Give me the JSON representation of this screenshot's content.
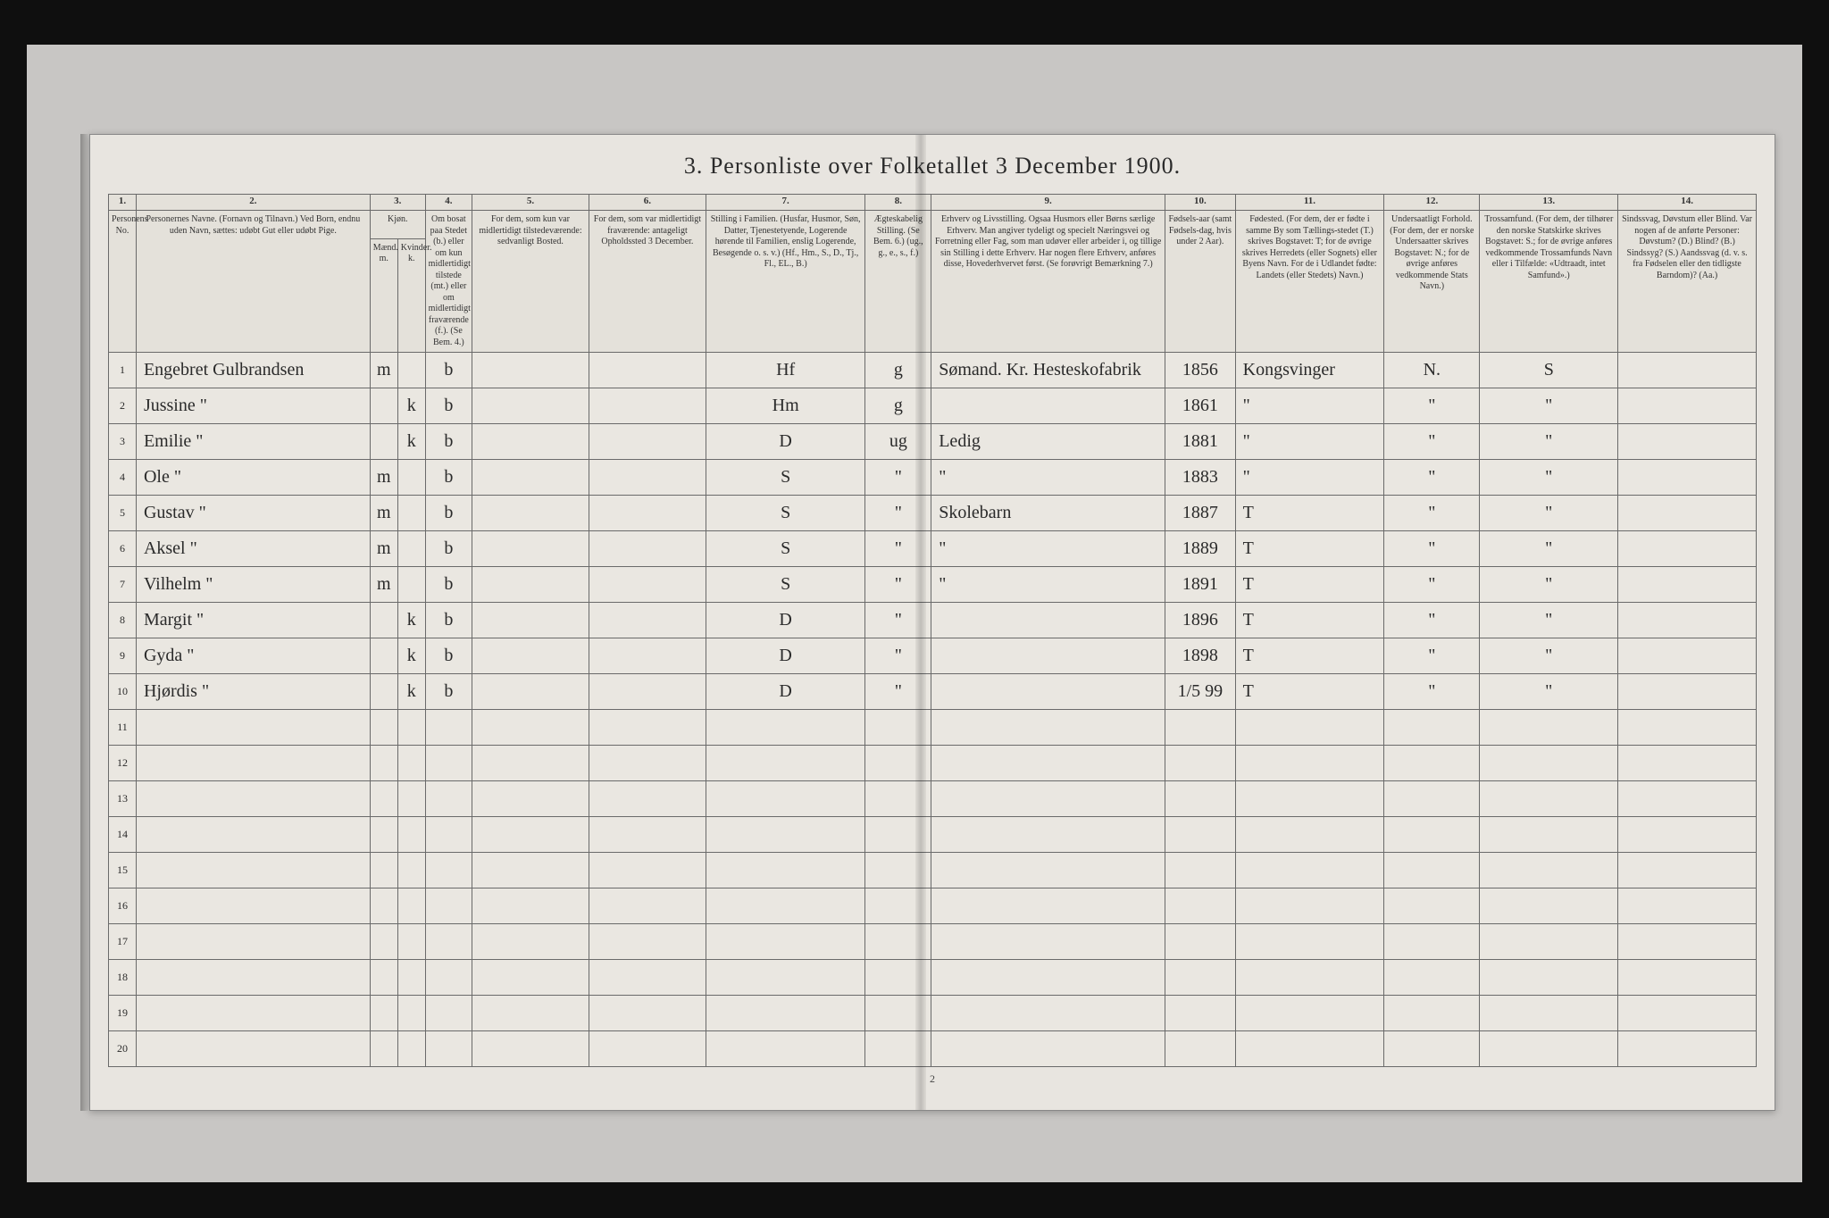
{
  "title": "3. Personliste over Folketallet 3 December 1900.",
  "page_number": "2",
  "column_numbers": [
    "1.",
    "2.",
    "3.",
    "4.",
    "5.",
    "6.",
    "7.",
    "8.",
    "9.",
    "10.",
    "11.",
    "12.",
    "13.",
    "14."
  ],
  "headers": {
    "c1": "Personens No.",
    "c2": "Personernes Navne.\n(Fornavn og Tilnavn.)\nVed Born, endnu uden Navn, sættes: udøbt Gut eller udøbt Pige.",
    "c3": "Kjøn.",
    "c3a": "Mænd. m.",
    "c3b": "Kvinder. k.",
    "c4": "Om bosat paa Stedet (b.) eller om kun midlertidigt tilstede (mt.) eller om midlertidigt fraværende (f.). (Se Bem. 4.)",
    "c5": "For dem, som kun var midlertidigt tilstedeværende:\nsedvanligt Bosted.",
    "c6": "For dem, som var midlertidigt fraværende:\nantageligt Opholdssted 3 December.",
    "c7": "Stilling i Familien.\n(Husfar, Husmor, Søn, Datter, Tjenestetyende, Logerende hørende til Familien, enslig Logerende, Besøgende o. s. v.)\n(Hf., Hm., S., D., Tj., Fl., EL., B.)",
    "c8": "Ægteskabelig Stilling.\n(Se Bem. 6.)\n(ug., g., e., s., f.)",
    "c9": "Erhverv og Livsstilling.\nOgsaa Husmors eller Børns særlige Erhverv. Man angiver tydeligt og specielt Næringsvei og Forretning eller Fag, som man udøver eller arbeider i, og tillige sin Stilling i dette Erhverv. Har nogen flere Erhverv, anføres disse, Hovederhvervet først.\n(Se forøvrigt Bemærkning 7.)",
    "c10": "Fødsels-aar\n(samt Fødsels-dag, hvis under 2 Aar).",
    "c11": "Fødested.\n(For dem, der er fødte i samme By som Tællings-stedet (T.) skrives Bogstavet: T; for de øvrige skrives Herredets (eller Sognets) eller Byens Navn. For de i Udlandet fødte: Landets (eller Stedets) Navn.)",
    "c12": "Undersaatligt Forhold.\n(For dem, der er norske Undersaatter skrives Bogstavet: N.; for de øvrige anføres vedkommende Stats Navn.)",
    "c13": "Trossamfund.\n(For dem, der tilhører den norske Statskirke skrives Bogstavet: S.; for de øvrige anføres vedkommende Trossamfunds Navn eller i Tilfælde: «Udtraadt, intet Samfund».)",
    "c14": "Sindssvag, Døvstum eller Blind.\nVar nogen af de anførte Personer:\nDøvstum? (D.)\nBlind? (B.)\nSindssyg? (S.)\nAandssvag (d. v. s. fra Fødselen eller den tidligste Barndom)? (Aa.)"
  },
  "rows": [
    {
      "n": "1",
      "name": "Engebret Gulbrandsen",
      "m": "m",
      "k": "",
      "res": "b",
      "c5": "",
      "c6": "",
      "fam": "Hf",
      "eg": "g",
      "occ": "Sømand. Kr. Hesteskofabrik",
      "year": "1856",
      "birthplace": "Kongsvinger",
      "nat": "N.",
      "rel": "S",
      "dis": ""
    },
    {
      "n": "2",
      "name": "Jussine    \"",
      "m": "",
      "k": "k",
      "res": "b",
      "c5": "",
      "c6": "",
      "fam": "Hm",
      "eg": "g",
      "occ": "",
      "year": "1861",
      "birthplace": "\"",
      "nat": "\"",
      "rel": "\"",
      "dis": ""
    },
    {
      "n": "3",
      "name": "Emilie    \"",
      "m": "",
      "k": "k",
      "res": "b",
      "c5": "",
      "c6": "",
      "fam": "D",
      "eg": "ug",
      "occ": "Ledig",
      "year": "1881",
      "birthplace": "\"",
      "nat": "\"",
      "rel": "\"",
      "dis": ""
    },
    {
      "n": "4",
      "name": "Ole    \"",
      "m": "m",
      "k": "",
      "res": "b",
      "c5": "",
      "c6": "",
      "fam": "S",
      "eg": "\"",
      "occ": "\"",
      "year": "1883",
      "birthplace": "\"",
      "nat": "\"",
      "rel": "\"",
      "dis": ""
    },
    {
      "n": "5",
      "name": "Gustav    \"",
      "m": "m",
      "k": "",
      "res": "b",
      "c5": "",
      "c6": "",
      "fam": "S",
      "eg": "\"",
      "occ": "Skolebarn",
      "year": "1887",
      "birthplace": "T",
      "nat": "\"",
      "rel": "\"",
      "dis": ""
    },
    {
      "n": "6",
      "name": "Aksel    \"",
      "m": "m",
      "k": "",
      "res": "b",
      "c5": "",
      "c6": "",
      "fam": "S",
      "eg": "\"",
      "occ": "\"",
      "year": "1889",
      "birthplace": "T",
      "nat": "\"",
      "rel": "\"",
      "dis": ""
    },
    {
      "n": "7",
      "name": "Vilhelm    \"",
      "m": "m",
      "k": "",
      "res": "b",
      "c5": "",
      "c6": "",
      "fam": "S",
      "eg": "\"",
      "occ": "\"",
      "year": "1891",
      "birthplace": "T",
      "nat": "\"",
      "rel": "\"",
      "dis": ""
    },
    {
      "n": "8",
      "name": "Margit    \"",
      "m": "",
      "k": "k",
      "res": "b",
      "c5": "",
      "c6": "",
      "fam": "D",
      "eg": "\"",
      "occ": "",
      "year": "1896",
      "birthplace": "T",
      "nat": "\"",
      "rel": "\"",
      "dis": ""
    },
    {
      "n": "9",
      "name": "Gyda    \"",
      "m": "",
      "k": "k",
      "res": "b",
      "c5": "",
      "c6": "",
      "fam": "D",
      "eg": "\"",
      "occ": "",
      "year": "1898",
      "birthplace": "T",
      "nat": "\"",
      "rel": "\"",
      "dis": ""
    },
    {
      "n": "10",
      "name": "Hjørdis    \"",
      "m": "",
      "k": "k",
      "res": "b",
      "c5": "",
      "c6": "",
      "fam": "D",
      "eg": "\"",
      "occ": "",
      "year": "1/5 99",
      "birthplace": "T",
      "nat": "\"",
      "rel": "\"",
      "dis": ""
    },
    {
      "n": "11",
      "name": "",
      "m": "",
      "k": "",
      "res": "",
      "c5": "",
      "c6": "",
      "fam": "",
      "eg": "",
      "occ": "",
      "year": "",
      "birthplace": "",
      "nat": "",
      "rel": "",
      "dis": ""
    },
    {
      "n": "12",
      "name": "",
      "m": "",
      "k": "",
      "res": "",
      "c5": "",
      "c6": "",
      "fam": "",
      "eg": "",
      "occ": "",
      "year": "",
      "birthplace": "",
      "nat": "",
      "rel": "",
      "dis": ""
    },
    {
      "n": "13",
      "name": "",
      "m": "",
      "k": "",
      "res": "",
      "c5": "",
      "c6": "",
      "fam": "",
      "eg": "",
      "occ": "",
      "year": "",
      "birthplace": "",
      "nat": "",
      "rel": "",
      "dis": ""
    },
    {
      "n": "14",
      "name": "",
      "m": "",
      "k": "",
      "res": "",
      "c5": "",
      "c6": "",
      "fam": "",
      "eg": "",
      "occ": "",
      "year": "",
      "birthplace": "",
      "nat": "",
      "rel": "",
      "dis": ""
    },
    {
      "n": "15",
      "name": "",
      "m": "",
      "k": "",
      "res": "",
      "c5": "",
      "c6": "",
      "fam": "",
      "eg": "",
      "occ": "",
      "year": "",
      "birthplace": "",
      "nat": "",
      "rel": "",
      "dis": ""
    },
    {
      "n": "16",
      "name": "",
      "m": "",
      "k": "",
      "res": "",
      "c5": "",
      "c6": "",
      "fam": "",
      "eg": "",
      "occ": "",
      "year": "",
      "birthplace": "",
      "nat": "",
      "rel": "",
      "dis": ""
    },
    {
      "n": "17",
      "name": "",
      "m": "",
      "k": "",
      "res": "",
      "c5": "",
      "c6": "",
      "fam": "",
      "eg": "",
      "occ": "",
      "year": "",
      "birthplace": "",
      "nat": "",
      "rel": "",
      "dis": ""
    },
    {
      "n": "18",
      "name": "",
      "m": "",
      "k": "",
      "res": "",
      "c5": "",
      "c6": "",
      "fam": "",
      "eg": "",
      "occ": "",
      "year": "",
      "birthplace": "",
      "nat": "",
      "rel": "",
      "dis": ""
    },
    {
      "n": "19",
      "name": "",
      "m": "",
      "k": "",
      "res": "",
      "c5": "",
      "c6": "",
      "fam": "",
      "eg": "",
      "occ": "",
      "year": "",
      "birthplace": "",
      "nat": "",
      "rel": "",
      "dis": ""
    },
    {
      "n": "20",
      "name": "",
      "m": "",
      "k": "",
      "res": "",
      "c5": "",
      "c6": "",
      "fam": "",
      "eg": "",
      "occ": "",
      "year": "",
      "birthplace": "",
      "nat": "",
      "rel": "",
      "dis": ""
    }
  ],
  "colors": {
    "paper": "#e8e5e0",
    "border": "#6a6a6a",
    "ink": "#2a2a2a",
    "background": "#c8c6c4"
  }
}
